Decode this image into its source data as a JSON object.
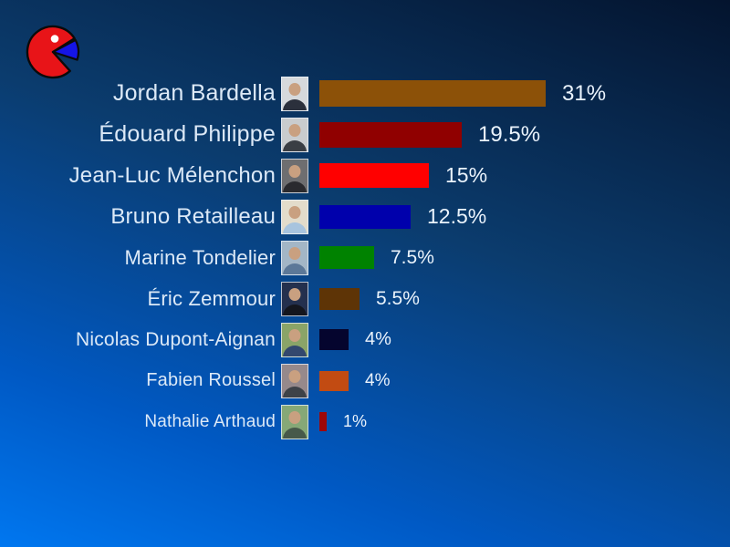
{
  "background": {
    "top_color": "#04142E",
    "bottom_color": "#0077F0"
  },
  "logo": {
    "description": "pie-chart pacman logo",
    "circle_color": "#E81418",
    "wedge_color": "#1515E6",
    "eye_color": "#FFFFFF",
    "outline_color": "#0A0A0A"
  },
  "chart_data": {
    "type": "bar",
    "orientation": "horizontal",
    "title": "",
    "categories": [
      "Jordan Bardella",
      "Édouard Philippe",
      "Jean-Luc Mélenchon",
      "Bruno Retailleau",
      "Marine Tondelier",
      "Éric Zemmour",
      "Nicolas Dupont-Aignan",
      "Fabien Roussel",
      "Nathalie Arthaud"
    ],
    "values": [
      31,
      19.5,
      15,
      12.5,
      7.5,
      5.5,
      4,
      4,
      1
    ],
    "value_labels": [
      "31%",
      "19.5%",
      "15%",
      "12.5%",
      "7.5%",
      "5.5%",
      "4%",
      "4%",
      "1%"
    ],
    "unit": "%",
    "colors": [
      "#8C5108",
      "#900000",
      "#FF0000",
      "#0000AC",
      "#008200",
      "#5E3406",
      "#05052E",
      "#C24B12",
      "#9E0707"
    ],
    "xlim": [
      0,
      35
    ],
    "grid": false,
    "legend": false,
    "axis_ticks": "none",
    "value_label_position": "right-of-bar",
    "sort_order": "descending",
    "row_thumbnails": "candidate portrait photos left of each bar"
  },
  "rows": [
    {
      "name": "Jordan Bardella",
      "value": 31,
      "label": "31%",
      "color": "#8C5108",
      "photo_bg": "#D6D9DC",
      "photo_suit": "#2B303C"
    },
    {
      "name": "Édouard Philippe",
      "value": 19.5,
      "label": "19.5%",
      "color": "#900000",
      "photo_bg": "#C9CCCE",
      "photo_suit": "#3A3E44"
    },
    {
      "name": "Jean-Luc Mélenchon",
      "value": 15,
      "label": "15%",
      "color": "#FF0000",
      "photo_bg": "#6E6E70",
      "photo_suit": "#2A2A2E"
    },
    {
      "name": "Bruno Retailleau",
      "value": 12.5,
      "label": "12.5%",
      "color": "#0000AC",
      "photo_bg": "#E3DCCB",
      "photo_suit": "#A8C4DE"
    },
    {
      "name": "Marine Tondelier",
      "value": 7.5,
      "label": "7.5%",
      "color": "#008200",
      "photo_bg": "#A3B6C6",
      "photo_suit": "#5C7898"
    },
    {
      "name": "Éric Zemmour",
      "value": 5.5,
      "label": "5.5%",
      "color": "#5E3406",
      "photo_bg": "#24304E",
      "photo_suit": "#14161E"
    },
    {
      "name": "Nicolas Dupont-Aignan",
      "value": 4,
      "label": "4%",
      "color": "#05052E",
      "photo_bg": "#8AA468",
      "photo_suit": "#33486E"
    },
    {
      "name": "Fabien Roussel",
      "value": 4,
      "label": "4%",
      "color": "#C24B12",
      "photo_bg": "#96898B",
      "photo_suit": "#3E4248"
    },
    {
      "name": "Nathalie Arthaud",
      "value": 1,
      "label": "1%",
      "color": "#9E0707",
      "photo_bg": "#86A877",
      "photo_suit": "#47594A"
    }
  ]
}
